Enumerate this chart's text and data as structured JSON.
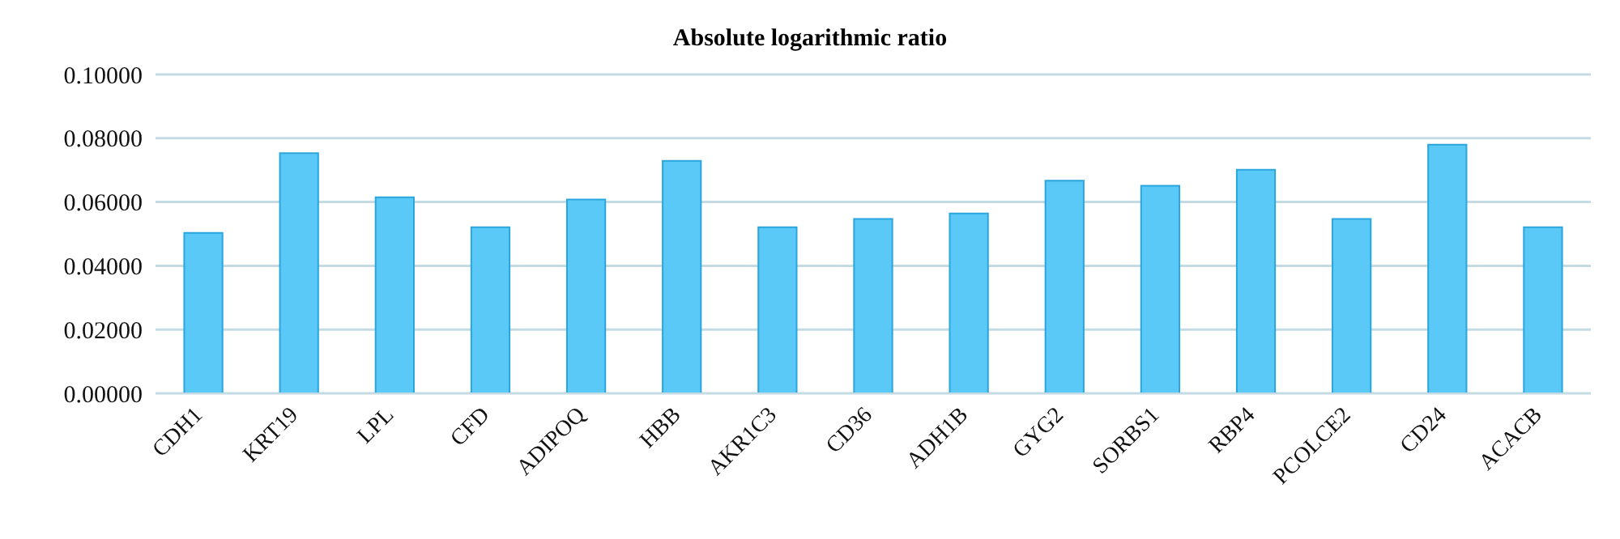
{
  "chart_data": {
    "type": "bar",
    "title": "Absolute logarithmic ratio",
    "categories": [
      "CDH1",
      "KRT19",
      "LPL",
      "CFD",
      "ADIPOQ",
      "HBB",
      "AKR1C3",
      "CD36",
      "ADH1B",
      "GYG2",
      "SORBS1",
      "RBP4",
      "PCOLCE2",
      "CD24",
      "ACACB"
    ],
    "values": [
      0.0503,
      0.0753,
      0.0615,
      0.0521,
      0.0608,
      0.0729,
      0.0521,
      0.0547,
      0.0564,
      0.0667,
      0.0651,
      0.0701,
      0.0547,
      0.078,
      0.0521
    ],
    "color": "#5bc9f7",
    "ylim": [
      0,
      0.1
    ],
    "yticks": [
      {
        "value": 0,
        "label": "0.00000"
      },
      {
        "value": 0.02,
        "label": "0.02000"
      },
      {
        "value": 0.04,
        "label": "0.04000"
      },
      {
        "value": 0.06,
        "label": "0.06000"
      },
      {
        "value": 0.08,
        "label": "0.08000"
      },
      {
        "value": 0.1,
        "label": "0.10000"
      }
    ],
    "grid": "y"
  }
}
